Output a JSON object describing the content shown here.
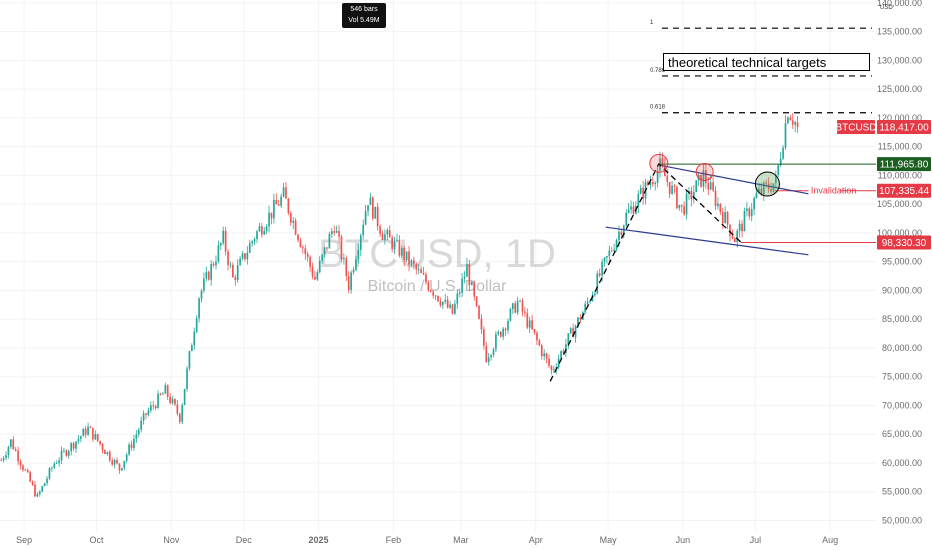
{
  "chart_data": {
    "type": "candlestick",
    "symbol": "BTCUSD",
    "interval": "1D",
    "watermark_title": "BTCUSD, 1D",
    "watermark_subtitle": "Bitcoin / U.S. Dollar",
    "currency": "USD",
    "bars_info": {
      "bars": "546 bars",
      "volume": "Vol 5.49M"
    },
    "x_start": "2024-08-22",
    "x_end": "2025-08-20",
    "ylim": [
      48000,
      140500
    ],
    "y_ticks": [
      50000,
      55000,
      60000,
      65000,
      70000,
      75000,
      80000,
      85000,
      90000,
      95000,
      100000,
      105000,
      110000,
      115000,
      120000,
      125000,
      130000,
      135000,
      140000
    ],
    "y_tick_labels": [
      "50,000.00",
      "55,000.00",
      "60,000.00",
      "65,000.00",
      "70,000.00",
      "75,000.00",
      "80,000.00",
      "85,000.00",
      "90,000.00",
      "95,000.00",
      "100,000.00",
      "105,000.00",
      "110,000.00",
      "115,000.00",
      "120,000.00",
      "125,000.00",
      "130,000.00",
      "135,000.00",
      "140,000.00"
    ],
    "x_ticks": [
      {
        "date": "2024-09-01",
        "label": "Sep"
      },
      {
        "date": "2024-10-01",
        "label": "Oct"
      },
      {
        "date": "2024-11-01",
        "label": "Nov"
      },
      {
        "date": "2024-12-01",
        "label": "Dec"
      },
      {
        "date": "2025-01-01",
        "label": "2025"
      },
      {
        "date": "2025-02-01",
        "label": "Feb"
      },
      {
        "date": "2025-03-01",
        "label": "Mar"
      },
      {
        "date": "2025-04-01",
        "label": "Apr"
      },
      {
        "date": "2025-05-01",
        "label": "May"
      },
      {
        "date": "2025-06-01",
        "label": "Jun"
      },
      {
        "date": "2025-07-01",
        "label": "Jul"
      },
      {
        "date": "2025-08-01",
        "label": "Aug"
      }
    ],
    "price_path": [
      [
        "2024-08-22",
        60500
      ],
      [
        "2024-08-26",
        63800
      ],
      [
        "2024-09-06",
        54000
      ],
      [
        "2024-09-13",
        60000
      ],
      [
        "2024-09-27",
        66000
      ],
      [
        "2024-10-10",
        59000
      ],
      [
        "2024-10-21",
        68500
      ],
      [
        "2024-10-29",
        72500
      ],
      [
        "2024-11-04",
        68000
      ],
      [
        "2024-11-12",
        89000
      ],
      [
        "2024-11-22",
        99000
      ],
      [
        "2024-11-26",
        92000
      ],
      [
        "2024-12-05",
        99500
      ],
      [
        "2024-12-17",
        106500
      ],
      [
        "2024-12-30",
        92000
      ],
      [
        "2025-01-07",
        101500
      ],
      [
        "2025-01-13",
        91000
      ],
      [
        "2025-01-21",
        106000
      ],
      [
        "2025-01-27",
        100000
      ],
      [
        "2025-02-03",
        97000
      ],
      [
        "2025-02-25",
        86000
      ],
      [
        "2025-03-03",
        94000
      ],
      [
        "2025-03-11",
        78500
      ],
      [
        "2025-03-24",
        88000
      ],
      [
        "2025-03-31",
        82000
      ],
      [
        "2025-04-07",
        76000
      ],
      [
        "2025-04-21",
        87000
      ],
      [
        "2025-05-08",
        103000
      ],
      [
        "2025-05-22",
        111500
      ],
      [
        "2025-05-31",
        104000
      ],
      [
        "2025-06-09",
        110000
      ],
      [
        "2025-06-22",
        99000
      ],
      [
        "2025-07-01",
        106500
      ],
      [
        "2025-07-09",
        109000
      ],
      [
        "2025-07-14",
        121500
      ],
      [
        "2025-07-18",
        118417
      ]
    ],
    "last_price": 118417.0,
    "annotations": {
      "levels": [
        {
          "value": 111965.8,
          "label": "111,965.80",
          "color": "#1b5e20"
        },
        {
          "value": 107335.44,
          "label": "107,335.44",
          "color": "#e53945",
          "note": "Invalidation"
        },
        {
          "value": 98330.3,
          "label": "98,330.30",
          "color": "#e53945"
        }
      ],
      "fib_levels": [
        {
          "ratio": "1",
          "value": 135600
        },
        {
          "ratio": "0.786",
          "value": 127300
        },
        {
          "ratio": "0.618",
          "value": 120900
        }
      ],
      "targets_text": "theoretical technical targets",
      "symbol_tag": "BTCUSD",
      "last_price_label": "118,417.00",
      "colors": {
        "up": "#26a69a",
        "down": "#ef5350",
        "trend": "#2a3a8f",
        "tag_red": "#e53945",
        "tag_green": "#1b5e20"
      }
    }
  }
}
